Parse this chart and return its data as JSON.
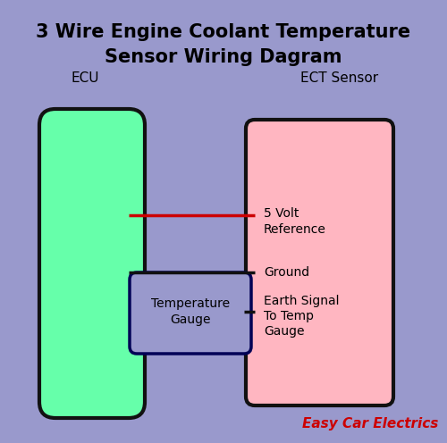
{
  "title_line1": "3 Wire Engine Coolant Temperature",
  "title_line2": "Sensor Wiring Dagram",
  "background_color": "#9999CC",
  "ecu_label": "ECU",
  "ect_label": "ECT Sensor",
  "ecu_box_color": "#66FFAA",
  "ecu_box_edge": "#111111",
  "ect_box_color": "#FFB6C1",
  "ect_box_edge": "#111111",
  "gauge_box_color": "#9999CC",
  "gauge_box_edge": "#000055",
  "wire_red_color": "#CC0000",
  "wire_black_color": "#111111",
  "label_5v": "5 Volt\nReference",
  "label_ground": "Ground",
  "label_earth": "Earth Signal\nTo Temp\nGauge",
  "label_temp_gauge": "Temperature\nGauge",
  "watermark": "Easy Car Electrics",
  "watermark_color": "#CC0000",
  "title_fontsize": 15,
  "label_fontsize": 11,
  "watermark_fontsize": 11
}
